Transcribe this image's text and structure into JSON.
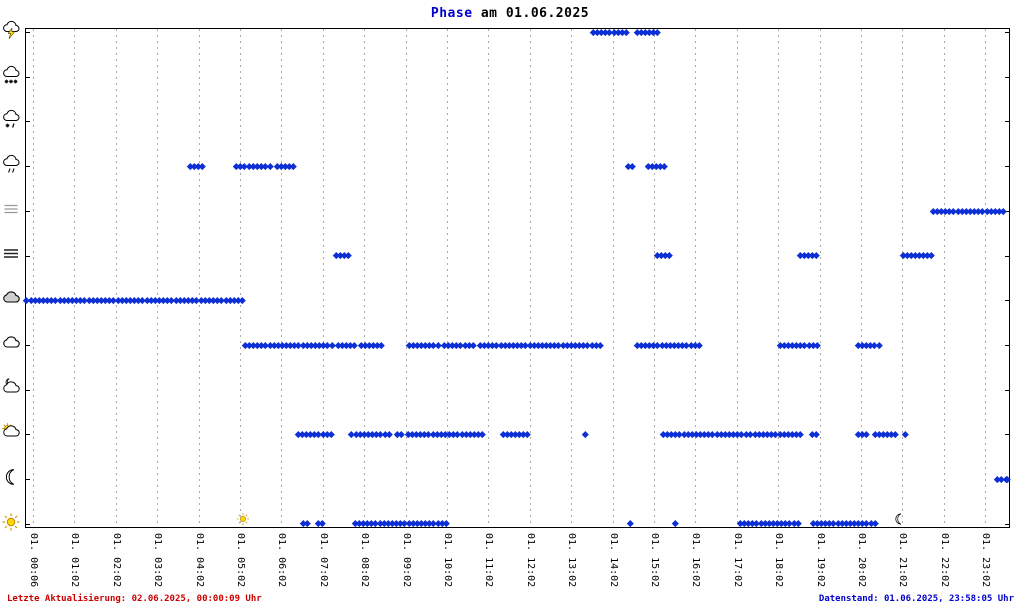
{
  "title": {
    "word": "Phase",
    "rest": " am 01.06.2025"
  },
  "footer": {
    "left": "Letzte Aktualisierung: 02.06.2025, 00:00:09 Uhr",
    "right": "Datenstand: 01.06.2025, 23:58:05 Uhr"
  },
  "chart_data": {
    "type": "scatter",
    "title": "Phase am 01.06.2025",
    "x_axis": {
      "unit": "hour-of-day",
      "grid": "dashed-vertical",
      "tick_labels": [
        "01. 00:06",
        "01. 01:02",
        "01. 02:02",
        "01. 03:02",
        "01. 04:02",
        "01. 05:02",
        "01. 06:02",
        "01. 07:02",
        "01. 08:02",
        "01. 09:02",
        "01. 10:02",
        "01. 11:02",
        "01. 12:02",
        "01. 13:02",
        "01. 14:02",
        "01. 15:02",
        "01. 16:02",
        "01. 17:02",
        "01. 18:02",
        "01. 19:02",
        "01. 20:02",
        "01. 21:02",
        "01. 22:02",
        "01. 23:02"
      ]
    },
    "point_color": "#0d2fd6",
    "grid_color": "#aaaaaa",
    "accent_blue": "#0000cd",
    "accent_red": "#cc0000",
    "rows": [
      {
        "icon": "thunderstorm-icon",
        "segments": [
          [
            13.53,
            14.37
          ],
          [
            14.59,
            15.17
          ]
        ]
      },
      {
        "icon": "snow-icon",
        "segments": []
      },
      {
        "icon": "sleet-icon",
        "segments": []
      },
      {
        "icon": "rain-icon",
        "segments": [
          [
            3.79,
            4.18
          ],
          [
            4.9,
            5.15
          ],
          [
            5.22,
            5.75
          ],
          [
            5.89,
            6.35
          ],
          [
            14.37,
            14.47
          ],
          [
            14.86,
            15.34
          ]
        ]
      },
      {
        "icon": "mist-icon",
        "segments": [
          [
            21.74,
            23.5
          ]
        ]
      },
      {
        "icon": "fog-icon",
        "segments": [
          [
            7.32,
            7.7
          ],
          [
            15.07,
            15.46
          ],
          [
            18.53,
            18.94
          ],
          [
            21.01,
            21.79
          ]
        ]
      },
      {
        "icon": "overcast-icon",
        "segments": [
          [
            -0.15,
            3.96
          ],
          [
            4.06,
            5.07
          ]
        ]
      },
      {
        "icon": "cloud-icon",
        "segments": [
          [
            5.12,
            7.25
          ],
          [
            7.37,
            7.8
          ],
          [
            7.92,
            8.45
          ],
          [
            9.08,
            9.83
          ],
          [
            9.93,
            10.72
          ],
          [
            10.8,
            13.72
          ],
          [
            14.59,
            15.12
          ],
          [
            15.19,
            16.11
          ],
          [
            18.04,
            18.96
          ],
          [
            19.93,
            20.51
          ]
        ]
      },
      {
        "icon": "night-cloud-icon",
        "segments": []
      },
      {
        "icon": "sun-cloud-icon",
        "segments": [
          [
            6.4,
            7.22
          ],
          [
            7.7,
            8.67
          ],
          [
            8.8,
            8.94
          ],
          [
            9.06,
            10.94
          ],
          [
            11.35,
            11.96
          ],
          [
            13.33,
            13.4
          ],
          [
            15.22,
            17.32
          ],
          [
            17.44,
            18.57
          ],
          [
            18.82,
            18.96
          ],
          [
            19.93,
            20.17
          ],
          [
            20.34,
            20.87
          ],
          [
            21.06,
            21.13
          ]
        ]
      },
      {
        "icon": "moon-icon",
        "segments": [
          [
            23.3,
            23.62
          ]
        ]
      },
      {
        "icon": "sun-icon",
        "segments": [
          [
            6.52,
            6.69
          ],
          [
            6.88,
            6.98
          ],
          [
            7.78,
            10.0
          ],
          [
            14.42,
            14.42
          ],
          [
            15.51,
            15.51
          ],
          [
            17.08,
            18.55
          ],
          [
            18.84,
            20.39
          ]
        ]
      }
    ],
    "axis_markers": [
      {
        "icon": "sun-icon",
        "name": "sunrise-marker",
        "x": 5.07
      },
      {
        "icon": "moon-icon",
        "name": "moonset-marker",
        "x": 20.92
      }
    ]
  }
}
